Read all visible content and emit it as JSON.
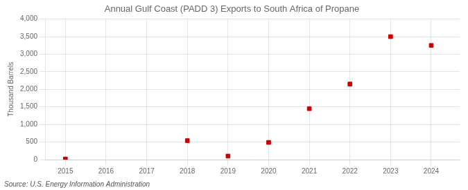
{
  "chart_data": {
    "type": "scatter",
    "title": "Annual Gulf Coast (PADD 3) Exports to South Africa of Propane",
    "y_label": "Thousand Barrels",
    "annotations": [
      "Source: U.S. Energy Information Administration"
    ],
    "x": [
      2015,
      2016,
      2017,
      2018,
      2019,
      2020,
      2021,
      2022,
      2023,
      2024
    ],
    "values": [
      18,
      null,
      null,
      540,
      100,
      490,
      1450,
      2150,
      3500,
      3250
    ],
    "color": "#cc0000",
    "marker": "square",
    "xlim": [
      2014.5,
      2024.7
    ],
    "xticks": [
      2015,
      2016,
      2017,
      2018,
      2019,
      2020,
      2021,
      2022,
      2023,
      2024
    ],
    "ylim": [
      0,
      4000
    ],
    "yticks": [
      0,
      500,
      {
        "value": 1000,
        "label": "1,000"
      },
      {
        "value": 1500,
        "label": "1,500"
      },
      {
        "value": 2000,
        "label": "2,000"
      },
      {
        "value": 2500,
        "label": "2,500"
      },
      {
        "value": 3000,
        "label": "3,000"
      },
      {
        "value": 3500,
        "label": "3,500"
      },
      {
        "value": 4000,
        "label": "4,000"
      }
    ],
    "grid": true
  }
}
